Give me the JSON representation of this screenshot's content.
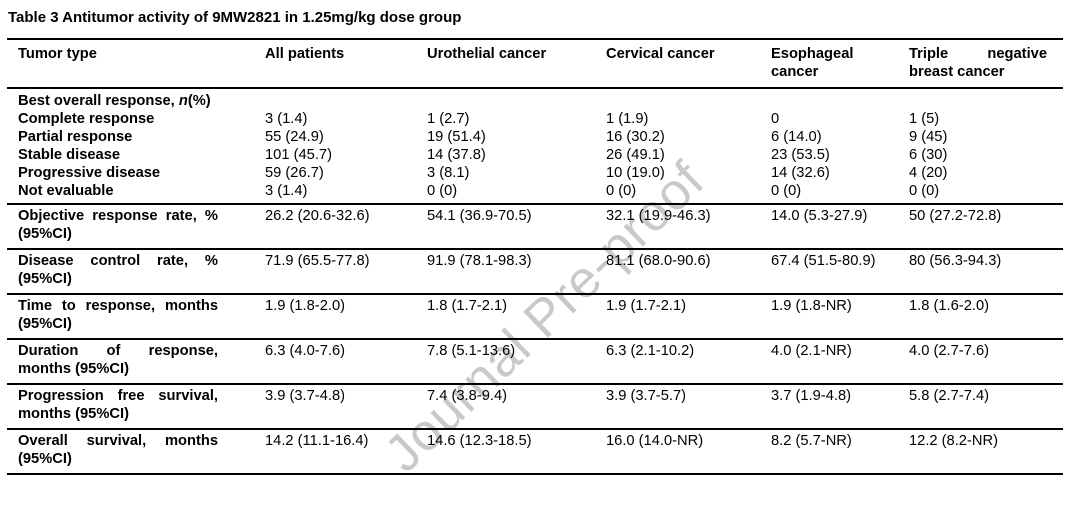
{
  "title": "Table 3 Antitumor activity of 9MW2821 in 1.25mg/kg dose group",
  "watermark": "Journal Pre-proof",
  "columns": [
    "Tumor type",
    "All patients",
    "Urothelial cancer",
    "Cervical cancer",
    "Esophageal cancer",
    "Triple negative breast cancer"
  ],
  "section": {
    "label_prefix": "Best overall response, ",
    "label_italic": "n",
    "label_suffix": "(%)"
  },
  "rows": [
    {
      "label": "Complete response",
      "values": [
        "3 (1.4)",
        "1 (2.7)",
        "1 (1.9)",
        "0",
        "1 (5)"
      ]
    },
    {
      "label": "Partial response",
      "values": [
        "55 (24.9)",
        "19 (51.4)",
        "16 (30.2)",
        "6 (14.0)",
        "9 (45)"
      ]
    },
    {
      "label": "Stable disease",
      "values": [
        "101 (45.7)",
        "14 (37.8)",
        "26 (49.1)",
        "23 (53.5)",
        "6 (30)"
      ]
    },
    {
      "label": "Progressive disease",
      "values": [
        "59 (26.7)",
        "3 (8.1)",
        "10 (19.0)",
        "14 (32.6)",
        "4 (20)"
      ]
    },
    {
      "label": "Not evaluable",
      "values": [
        "3 (1.4)",
        "0 (0)",
        "0 (0)",
        "0 (0)",
        "0 (0)"
      ]
    }
  ],
  "metric_rows": [
    {
      "label": "Objective response rate, % (95%CI)",
      "values": [
        "26.2 (20.6-32.6)",
        "54.1 (36.9-70.5)",
        "32.1 (19.9-46.3)",
        "14.0 (5.3-27.9)",
        "50 (27.2-72.8)"
      ]
    },
    {
      "label": "Disease control rate, % (95%CI)",
      "values": [
        "71.9 (65.5-77.8)",
        "91.9 (78.1-98.3)",
        "81.1 (68.0-90.6)",
        "67.4 (51.5-80.9)",
        "80 (56.3-94.3)"
      ]
    },
    {
      "label": "Time to response, months (95%CI)",
      "values": [
        "1.9 (1.8-2.0)",
        "1.8 (1.7-2.1)",
        "1.9 (1.7-2.1)",
        "1.9 (1.8-NR)",
        "1.8 (1.6-2.0)"
      ]
    },
    {
      "label": "Duration of response, months (95%CI)",
      "values": [
        "6.3 (4.0-7.6)",
        "7.8 (5.1-13.6)",
        "6.3 (2.1-10.2)",
        "4.0 (2.1-NR)",
        "4.0 (2.7-7.6)"
      ]
    },
    {
      "label": "Progression free survival, months (95%CI)",
      "values": [
        "3.9 (3.7-4.8)",
        "7.4 (3.8-9.4)",
        "3.9 (3.7-5.7)",
        "3.7 (1.9-4.8)",
        "5.8 (2.7-7.4)"
      ]
    },
    {
      "label": "Overall survival, months (95%CI)",
      "values": [
        "14.2 (11.1-16.4)",
        "14.6 (12.3-18.5)",
        "16.0 (14.0-NR)",
        "8.2 (5.7-NR)",
        "12.2 (8.2-NR)"
      ]
    }
  ]
}
